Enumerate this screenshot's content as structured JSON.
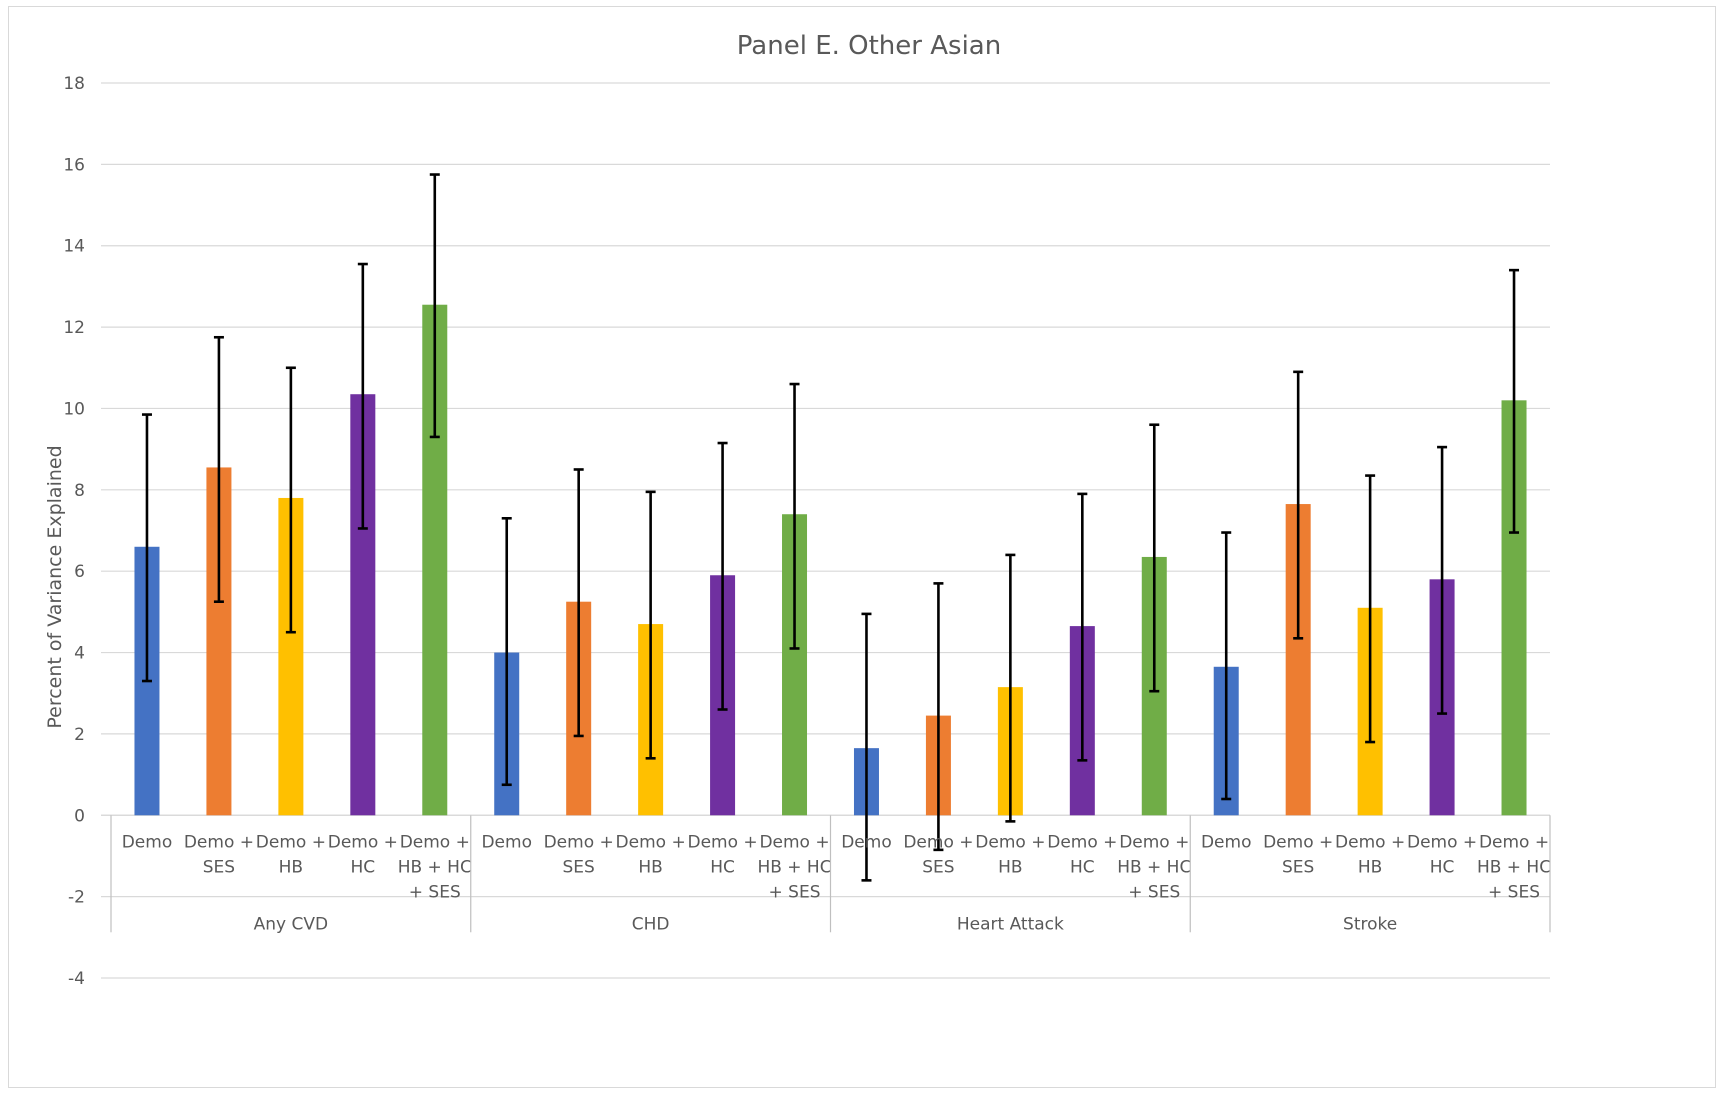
{
  "chart_data": {
    "type": "bar",
    "title": "Panel E. Other Asian",
    "ylabel": "Percent of Variance Explained",
    "xlabel": "",
    "ylim": [
      -4,
      18
    ],
    "yticks": [
      "18",
      "16",
      "14",
      "12",
      "10",
      "8",
      "6",
      "4",
      "2",
      "0",
      "-2",
      "-4"
    ],
    "ytick_values": [
      18,
      16,
      14,
      12,
      10,
      8,
      6,
      4,
      2,
      0,
      -2,
      -4
    ],
    "grid": true,
    "legend": "none",
    "error_bars": true,
    "series_colors": [
      "#4472C4",
      "#ED7D31",
      "#FFC000",
      "#7030A0",
      "#70AD47"
    ],
    "groups": [
      {
        "label": "Any CVD",
        "bars": [
          {
            "label": [
              "Demo"
            ],
            "value": 6.6,
            "lo": 3.3,
            "hi": 9.85
          },
          {
            "label": [
              "Demo +",
              "SES"
            ],
            "value": 8.55,
            "lo": 5.25,
            "hi": 11.75
          },
          {
            "label": [
              "Demo +",
              "HB"
            ],
            "value": 7.8,
            "lo": 4.5,
            "hi": 11.0
          },
          {
            "label": [
              "Demo +",
              "HC"
            ],
            "value": 10.35,
            "lo": 7.05,
            "hi": 13.55
          },
          {
            "label": [
              "Demo +",
              "HB + HC",
              "+ SES"
            ],
            "value": 12.55,
            "lo": 9.3,
            "hi": 15.75
          }
        ]
      },
      {
        "label": "CHD",
        "bars": [
          {
            "label": [
              "Demo"
            ],
            "value": 4.0,
            "lo": 0.75,
            "hi": 7.3
          },
          {
            "label": [
              "Demo +",
              "SES"
            ],
            "value": 5.25,
            "lo": 1.95,
            "hi": 8.5
          },
          {
            "label": [
              "Demo +",
              "HB"
            ],
            "value": 4.7,
            "lo": 1.4,
            "hi": 7.95
          },
          {
            "label": [
              "Demo +",
              "HC"
            ],
            "value": 5.9,
            "lo": 2.6,
            "hi": 9.15
          },
          {
            "label": [
              "Demo +",
              "HB + HC",
              "+ SES"
            ],
            "value": 7.4,
            "lo": 4.1,
            "hi": 10.6
          }
        ]
      },
      {
        "label": "Heart Attack",
        "bars": [
          {
            "label": [
              "Demo"
            ],
            "value": 1.65,
            "lo": -1.6,
            "hi": 4.95
          },
          {
            "label": [
              "Demo +",
              "SES"
            ],
            "value": 2.45,
            "lo": -0.85,
            "hi": 5.7
          },
          {
            "label": [
              "Demo +",
              "HB"
            ],
            "value": 3.15,
            "lo": -0.15,
            "hi": 6.4
          },
          {
            "label": [
              "Demo +",
              "HC"
            ],
            "value": 4.65,
            "lo": 1.35,
            "hi": 7.9
          },
          {
            "label": [
              "Demo +",
              "HB + HC",
              "+ SES"
            ],
            "value": 6.35,
            "lo": 3.05,
            "hi": 9.6
          }
        ]
      },
      {
        "label": "Stroke",
        "bars": [
          {
            "label": [
              "Demo"
            ],
            "value": 3.65,
            "lo": 0.4,
            "hi": 6.95
          },
          {
            "label": [
              "Demo +",
              "SES"
            ],
            "value": 7.65,
            "lo": 4.35,
            "hi": 10.9
          },
          {
            "label": [
              "Demo +",
              "HB"
            ],
            "value": 5.1,
            "lo": 1.8,
            "hi": 8.35
          },
          {
            "label": [
              "Demo +",
              "HC"
            ],
            "value": 5.8,
            "lo": 2.5,
            "hi": 9.05
          },
          {
            "label": [
              "Demo +",
              "HB + HC",
              "+ SES"
            ],
            "value": 10.2,
            "lo": 6.95,
            "hi": 13.4
          }
        ]
      }
    ]
  }
}
